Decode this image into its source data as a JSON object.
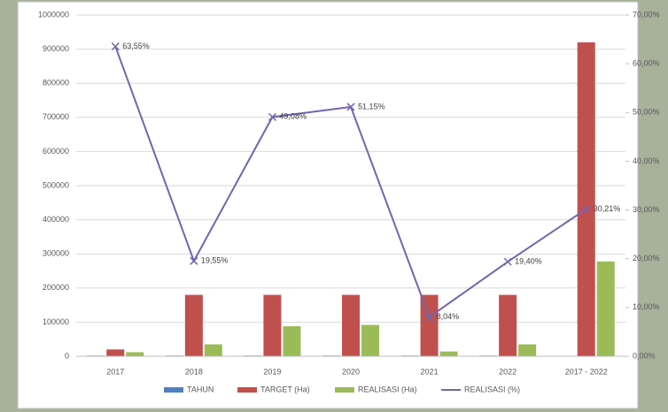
{
  "chart_data": {
    "type": "bar",
    "categories": [
      "2017",
      "2018",
      "2019",
      "2020",
      "2021",
      "2022",
      "2017 - 2022"
    ],
    "series": [
      {
        "name": "TAHUN",
        "color": "#4f81bd",
        "values": [
          2017,
          2018,
          2019,
          2020,
          2021,
          2022,
          null
        ]
      },
      {
        "name": "TARGET (Ha)",
        "color": "#c0504d",
        "values": [
          20000,
          180000,
          180000,
          180000,
          180000,
          180000,
          920000
        ]
      },
      {
        "name": "REALISASI (Ha)",
        "color": "#9bbb59",
        "values": [
          12000,
          35000,
          88000,
          92000,
          14000,
          35000,
          278000
        ]
      },
      {
        "name": "REALISASI (%)",
        "color": "#7464b0",
        "type": "line",
        "axis": "y2",
        "values": [
          63.55,
          19.55,
          49.08,
          51.15,
          8.04,
          19.4,
          30.21
        ],
        "value_labels": [
          "63,55%",
          "19,55%",
          "49,08%",
          "51,15%",
          "8,04%",
          "19,40%",
          "30,21%"
        ]
      }
    ],
    "ylim": [
      0,
      1000000
    ],
    "yticks": [
      0,
      100000,
      200000,
      300000,
      400000,
      500000,
      600000,
      700000,
      800000,
      900000,
      1000000
    ],
    "y2lim": [
      0,
      70
    ],
    "y2ticks": [
      {
        "value": 0,
        "label": "0,00%"
      },
      {
        "value": 10,
        "label": "10,00%"
      },
      {
        "value": 20,
        "label": "20,00%"
      },
      {
        "value": 30,
        "label": "30,00%"
      },
      {
        "value": 40,
        "label": "40,00%"
      },
      {
        "value": 50,
        "label": "50,00%"
      },
      {
        "value": 60,
        "label": "60,00%"
      },
      {
        "value": 70,
        "label": "70,00%"
      }
    ],
    "grid": true,
    "legend": "bottom"
  }
}
